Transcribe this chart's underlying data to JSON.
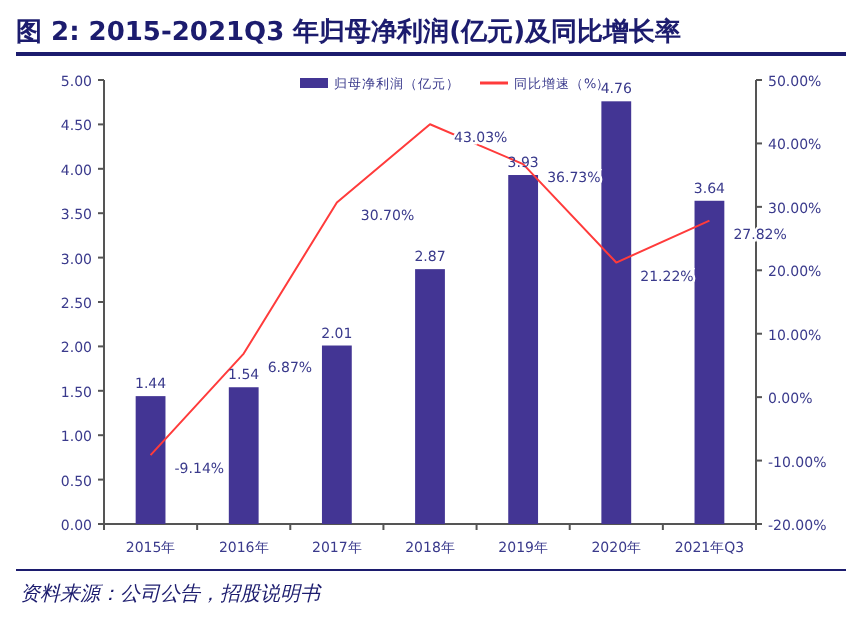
{
  "chart_data": {
    "type": "bar",
    "title": "图 2: 2015-2021Q3 年归母净利润(亿元)及同比增长率",
    "categories": [
      "2015年",
      "2016年",
      "2017年",
      "2018年",
      "2019年",
      "2020年",
      "2021年Q3"
    ],
    "series": [
      {
        "name": "归母净利润（亿元）",
        "color": "#433594",
        "values": [
          1.44,
          1.54,
          2.01,
          2.87,
          3.93,
          4.76,
          3.64
        ],
        "value_labels": [
          "1.44",
          "1.54",
          "2.01",
          "2.87",
          "3.93",
          "4.76",
          "3.64"
        ]
      },
      {
        "name": "同比增速（%）",
        "type": "line",
        "axis": "y2",
        "color": "#ff3b3b",
        "values": [
          -9.14,
          6.87,
          30.7,
          43.03,
          36.73,
          21.22,
          27.82
        ],
        "value_labels": [
          "-9.14%",
          "6.87%",
          "30.70%",
          "43.03%",
          "36.73%",
          "21.22%",
          "27.82%"
        ]
      }
    ],
    "ylim": [
      0,
      5
    ],
    "yticks": [
      {
        "value": 0,
        "label": "0.00"
      },
      {
        "value": 0.5,
        "label": "0.50"
      },
      {
        "value": 1,
        "label": "1.00"
      },
      {
        "value": 1.5,
        "label": "1.50"
      },
      {
        "value": 2,
        "label": "2.00"
      },
      {
        "value": 2.5,
        "label": "2.50"
      },
      {
        "value": 3,
        "label": "3.00"
      },
      {
        "value": 3.5,
        "label": "3.50"
      },
      {
        "value": 4,
        "label": "4.00"
      },
      {
        "value": 4.5,
        "label": "4.50"
      },
      {
        "value": 5,
        "label": "5.00"
      }
    ],
    "y2lim": [
      -20,
      50
    ],
    "y2ticks": [
      {
        "value": -20,
        "label": "-20.00%"
      },
      {
        "value": -10,
        "label": "-10.00%"
      },
      {
        "value": 0,
        "label": "0.00%"
      },
      {
        "value": 10,
        "label": "10.00%"
      },
      {
        "value": 20,
        "label": "20.00%"
      },
      {
        "value": 30,
        "label": "30.00%"
      },
      {
        "value": 40,
        "label": "40.00%"
      },
      {
        "value": 50,
        "label": "50.00%"
      }
    ],
    "legend": "top",
    "grid": false,
    "marker": "none",
    "line_style": "solid",
    "annotations": [
      "资料来源：公司公告，招股说明书"
    ]
  }
}
